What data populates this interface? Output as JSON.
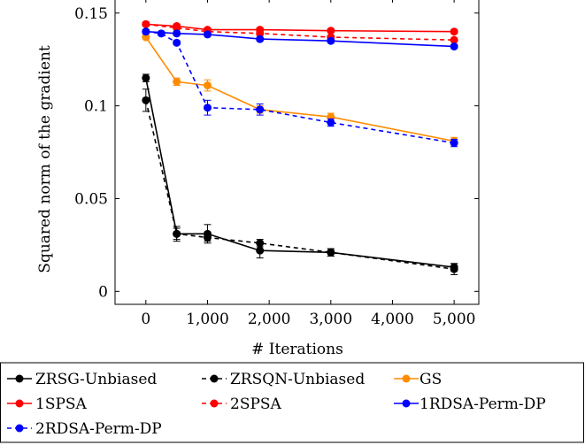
{
  "chart_data": {
    "type": "line",
    "xlabel": "# Iterations",
    "ylabel": "Squared norm of the gradient",
    "xlim": [
      -500,
      5400
    ],
    "ylim": [
      -0.007,
      0.158
    ],
    "xticks": [
      {
        "value": 0,
        "label": "0"
      },
      {
        "value": 1000,
        "label": "1,000"
      },
      {
        "value": 2000,
        "label": "2,000"
      },
      {
        "value": 3000,
        "label": "3,000"
      },
      {
        "value": 4000,
        "label": "4,000"
      },
      {
        "value": 5000,
        "label": "5,000"
      }
    ],
    "yticks": [
      {
        "value": 0,
        "label": "0"
      },
      {
        "value": 0.05,
        "label": "0.05"
      },
      {
        "value": 0.1,
        "label": "0.1"
      },
      {
        "value": 0.15,
        "label": "0.15"
      }
    ],
    "grid": false,
    "legend_position": "bottom",
    "series": [
      {
        "name": "ZRSG-Unbiased",
        "color": "#000000",
        "dashed": false,
        "x": [
          0,
          500,
          1000,
          1850,
          3000,
          5000
        ],
        "y": [
          0.115,
          0.031,
          0.031,
          0.022,
          0.021,
          0.013
        ],
        "err": [
          0.002,
          0.004,
          0.005,
          0.004,
          0.002,
          0.002
        ]
      },
      {
        "name": "ZRSQN-Unbiased",
        "color": "#000000",
        "dashed": true,
        "x": [
          0,
          500,
          1000,
          1850,
          3000,
          5000
        ],
        "y": [
          0.103,
          0.031,
          0.029,
          0.026,
          0.021,
          0.012
        ],
        "err": [
          0.006,
          0.003,
          0.002,
          0.002,
          0.002,
          0.003
        ]
      },
      {
        "name": "GS",
        "color": "#ff8c00",
        "dashed": false,
        "x": [
          0,
          500,
          1000,
          1850,
          3000,
          5000
        ],
        "y": [
          0.137,
          0.113,
          0.111,
          0.098,
          0.094,
          0.081
        ],
        "err": [
          0.001,
          0.002,
          0.003,
          0.002,
          0.002,
          0.002
        ]
      },
      {
        "name": "1SPSA",
        "color": "#ff0000",
        "dashed": false,
        "x": [
          0,
          500,
          1000,
          1850,
          3000,
          5000
        ],
        "y": [
          0.144,
          0.143,
          0.141,
          0.141,
          0.1405,
          0.14
        ],
        "err": [
          0.001,
          0.001,
          0.001,
          0.001,
          0.001,
          0.001
        ]
      },
      {
        "name": "2SPSA",
        "color": "#ff0000",
        "dashed": true,
        "x": [
          0,
          500,
          1000,
          1850,
          3000,
          5000
        ],
        "y": [
          0.144,
          0.142,
          0.14,
          0.139,
          0.137,
          0.1355
        ],
        "err": [
          0.001,
          0.001,
          0.001,
          0.001,
          0.001,
          0.001
        ]
      },
      {
        "name": "1RDSA-Perm-DP",
        "color": "#0000ff",
        "dashed": false,
        "x": [
          0,
          500,
          1000,
          1850,
          3000,
          5000
        ],
        "y": [
          0.14,
          0.139,
          0.1385,
          0.136,
          0.135,
          0.132
        ],
        "err": [
          0.001,
          0.001,
          0.001,
          0.001,
          0.001,
          0.001
        ]
      },
      {
        "name": "2RDSA-Perm-DP",
        "color": "#0000ff",
        "dashed": true,
        "x": [
          0,
          250,
          500,
          1000,
          1850,
          3000,
          5000
        ],
        "y": [
          0.14,
          0.139,
          0.134,
          0.099,
          0.098,
          0.091,
          0.08
        ],
        "err": [
          0.001,
          0.001,
          0.001,
          0.004,
          0.003,
          0.002,
          0.002
        ]
      }
    ]
  }
}
